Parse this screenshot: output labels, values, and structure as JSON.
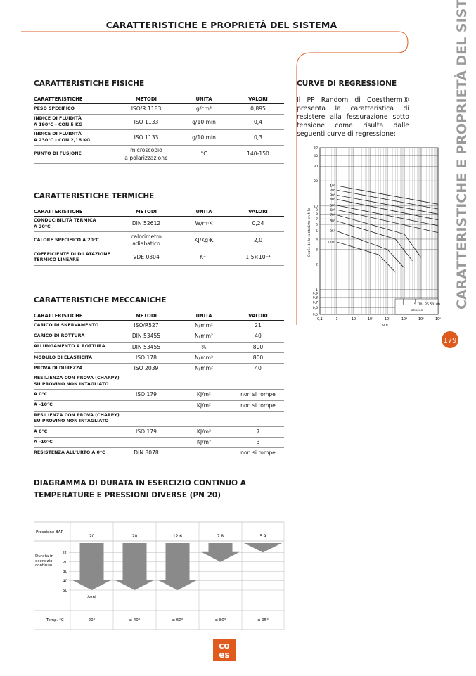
{
  "header": {
    "title": "CARATTERISTICHE E PROPRIETÀ DEL SISTEMA",
    "side_title": "CARATTERISTICHE E PROPRIETÀ DEL SISTEMA",
    "page_number": "179"
  },
  "sections": [
    {
      "title": "CARATTERISTICHE FISICHE",
      "columns": [
        "CARATTERISTICHE",
        "METODI",
        "UNITÀ",
        "VALORI"
      ],
      "rows": [
        [
          "PESO SPECIFICO",
          "ISO/R 1183",
          "g/cm³",
          "0,895"
        ],
        [
          "INDICE DI FLUIDITÀ\nA 190°C - CON 5 KG",
          "ISO 1133",
          "g/10 min",
          "0,4"
        ],
        [
          "INDICE DI FLUIDITÀ\nA 230°C - CON 2,16 KG",
          "ISO 1133",
          "g/10 min",
          "0,3"
        ],
        [
          "PUNTO DI FUSIONE",
          "microscopio\na polarizzazione",
          "°C",
          "140-150"
        ]
      ]
    },
    {
      "title": "CARATTERISTICHE TERMICHE",
      "columns": [
        "CARATTERISTICHE",
        "METODI",
        "UNITÀ",
        "VALORI"
      ],
      "rows": [
        [
          "CONDUCIBILITÀ TERMICA\nA 20°C",
          "DIN 52612",
          "W/m·K",
          "0,24"
        ],
        [
          "CALORE SPECIFICO A 20°C",
          "calorimetro\nadiabatico",
          "KJ/Kg·K",
          "2,0"
        ],
        [
          "COEFFICIENTE DI DILATAZIONE\nTERMICO LINEARE",
          "VDE 0304",
          "K⁻¹",
          "1,5×10⁻⁴"
        ]
      ]
    },
    {
      "title": "CARATTERISTICHE MECCANICHE",
      "columns": [
        "CARATTERISTICHE",
        "METODI",
        "UNITÀ",
        "VALORI"
      ],
      "rows": [
        [
          "CARICO DI SNERVAMENTO",
          "ISO/R527",
          "N/mm²",
          "21"
        ],
        [
          "CARICO DI ROTTURA",
          "DIN 53455",
          "N/mm²",
          "40"
        ],
        [
          "ALLUNGAMENTO A ROTTURA",
          "DIN 53455",
          "%",
          "800"
        ],
        [
          "MODULO DI ELASTICITÀ",
          "ISO 178",
          "N/mm²",
          "800"
        ],
        [
          "PROVA DI DUREZZA",
          "ISO 2039",
          "N/mm²",
          "40"
        ],
        [
          "RESILIENZA CON PROVA (CHARPY)\nSU PROVINO NON INTAGLIATO"
        ],
        [
          "A 0°C",
          "ISO 179",
          "KJ/m²",
          "non si rompe"
        ],
        [
          "A –10°C",
          "",
          "KJ/m²",
          "non si rompe"
        ],
        [
          "RESILIENZA CON PROVA (CHARPY)\nSU PROVINO NON INTAGLIATO"
        ],
        [
          "A 0°C",
          "ISO 179",
          "KJ/m²",
          "7"
        ],
        [
          "A –10°C",
          "",
          "KJ/m²",
          "3"
        ],
        [
          "RESISTENZA ALL'URTO A 0°C",
          "DIN 8078",
          "",
          "non si rompe"
        ]
      ]
    }
  ],
  "durability": {
    "title": "DIAGRAMMA DI DURATA IN ESERCIZIO CONTINUO A TEMPERATURE E PRESSIONI DIVERSE (PN 20)",
    "pressure_label": "Pressione BAR",
    "pressures": [
      20,
      20,
      12.6,
      7.8,
      5.9
    ],
    "duration_label": "Durata in esercizio continuo",
    "ylim": [
      0,
      50
    ],
    "yticks": [
      10,
      20,
      30,
      40,
      50
    ],
    "unit_label": "Anni",
    "durations": [
      50,
      50,
      50,
      20,
      10
    ],
    "temp_label": "Temp. °C",
    "temps": [
      "20°",
      "≤ 40°",
      "≤ 60°",
      "≤ 80°",
      "≤ 95°"
    ]
  },
  "regression": {
    "title": "CURVE DI REGRESSIONE",
    "text": "Il PP Random di Coestherm® presenta la caratteristica di resistere alla fessurazione sotto tensione come risulta dalle seguenti curve di regressione:",
    "chart": {
      "type": "line",
      "log_x": true,
      "log_y": true,
      "grid": true,
      "ylabel": "Durée de la contrainte en MPa",
      "xlabel": "ore",
      "inset_label": "années",
      "inset_ticks": [
        1,
        5,
        10,
        25,
        50,
        100
      ],
      "xlim": [
        0.1,
        1000000
      ],
      "xticks": [
        {
          "value": 0.1,
          "label": "0,1"
        },
        1,
        10,
        {
          "value": 100,
          "label": "10²"
        },
        {
          "value": 1000,
          "label": "10³"
        },
        {
          "value": 10000,
          "label": "10⁴"
        },
        {
          "value": 100000,
          "label": "10⁵"
        },
        {
          "value": 1000000,
          "label": "10⁶"
        }
      ],
      "ylim": [
        0.5,
        50
      ],
      "yticks": [
        50,
        40,
        30,
        20,
        10,
        9,
        8,
        7,
        6,
        5,
        4,
        3,
        2,
        1,
        {
          "value": 0.9,
          "label": "0,9"
        },
        {
          "value": 0.8,
          "label": "0,8"
        },
        {
          "value": 0.7,
          "label": "0,7"
        },
        {
          "value": 0.6,
          "label": "0,6"
        },
        {
          "value": 0.5,
          "label": "0,5"
        }
      ],
      "color": "#222222",
      "series": [
        {
          "name": "10°",
          "x": [
            1,
            1000000
          ],
          "values": [
            17.5,
            10.5
          ]
        },
        {
          "name": "20°",
          "x": [
            1,
            1000000
          ],
          "values": [
            15.5,
            9.2
          ]
        },
        {
          "name": "30°",
          "x": [
            1,
            1000000
          ],
          "values": [
            13.5,
            8
          ]
        },
        {
          "name": "40°",
          "x": [
            1,
            1000000
          ],
          "values": [
            12,
            6.8
          ]
        },
        {
          "name": "50°",
          "x": [
            1,
            1000000
          ],
          "values": [
            10.2,
            5.8
          ]
        },
        {
          "name": "60°",
          "x": [
            1,
            1000000
          ],
          "values": [
            9,
            4.8
          ]
        },
        {
          "name": "70°",
          "x": [
            1,
            10000,
            100000
          ],
          "values": [
            7.8,
            4.6,
            2.4
          ]
        },
        {
          "name": "80°",
          "x": [
            1,
            3000,
            30000
          ],
          "values": [
            6.6,
            4,
            2.2
          ]
        },
        {
          "name": "95°",
          "x": [
            1,
            1000,
            10000
          ],
          "values": [
            5,
            3,
            1.8
          ]
        },
        {
          "name": "110°",
          "x": [
            1,
            300,
            3000
          ],
          "values": [
            3.7,
            2.6,
            1.6
          ]
        }
      ]
    }
  },
  "logo": {
    "top": "co",
    "bottom": "es"
  }
}
